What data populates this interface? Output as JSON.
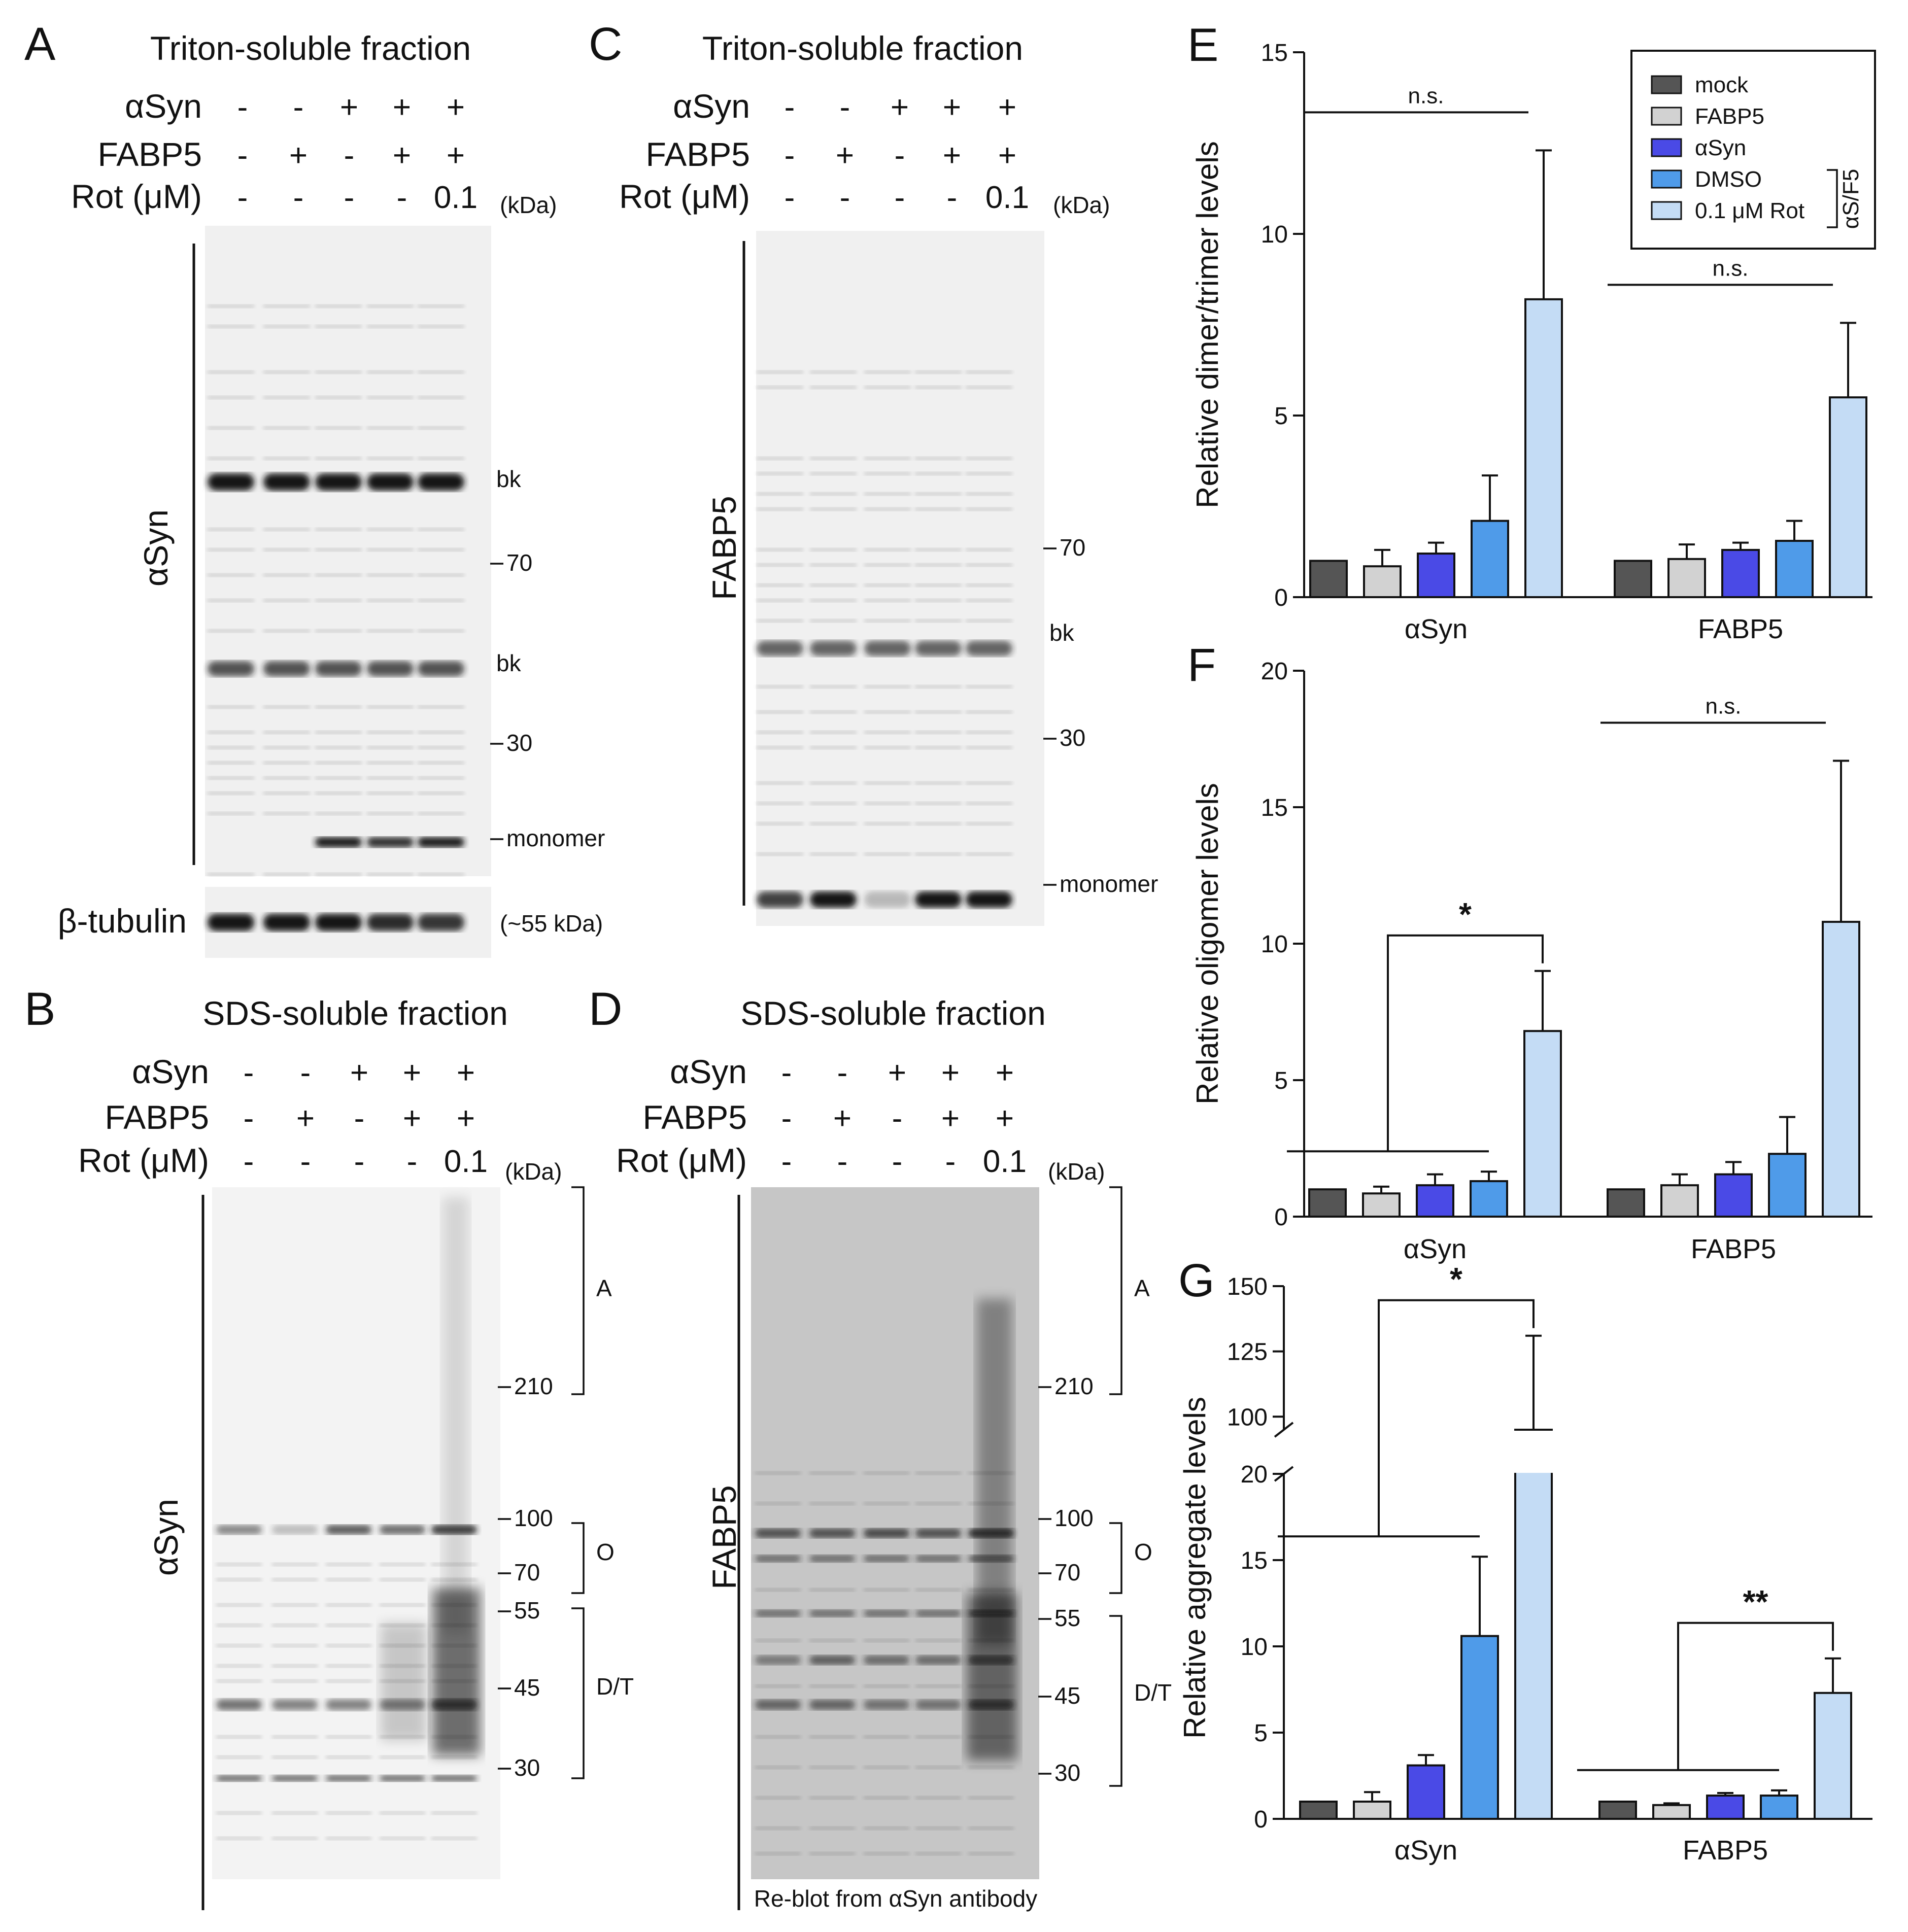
{
  "blots": {
    "A": {
      "panel": "A",
      "title": "Triton-soluble fraction",
      "rows": [
        {
          "label": "αSyn",
          "signs": [
            "-",
            "-",
            "+",
            "+",
            "+"
          ]
        },
        {
          "label": "FABP5",
          "signs": [
            "-",
            "+",
            "-",
            "+",
            "+"
          ]
        },
        {
          "label": "Rot (μM)",
          "signs": [
            "-",
            "-",
            "-",
            "-",
            "0.1"
          ]
        }
      ],
      "kda": "(kDa)",
      "antibody": "αSyn",
      "markers": [
        "bk",
        "70",
        "bk",
        "30",
        "monomer"
      ],
      "loading_label": "β-tubulin",
      "loading_note": "(~55 kDa)"
    },
    "B": {
      "panel": "B",
      "title": "SDS-soluble fraction",
      "rows": [
        {
          "label": "αSyn",
          "signs": [
            "-",
            "-",
            "+",
            "+",
            "+"
          ]
        },
        {
          "label": "FABP5",
          "signs": [
            "-",
            "+",
            "-",
            "+",
            "+"
          ]
        },
        {
          "label": "Rot (μM)",
          "signs": [
            "-",
            "-",
            "-",
            "-",
            "0.1"
          ]
        }
      ],
      "kda": "(kDa)",
      "antibody": "αSyn",
      "markers": [
        "210",
        "100",
        "70",
        "55",
        "45",
        "30"
      ],
      "brackets": [
        "A",
        "O",
        "D/T"
      ]
    },
    "C": {
      "panel": "C",
      "title": "Triton-soluble fraction",
      "rows": [
        {
          "label": "αSyn",
          "signs": [
            "-",
            "-",
            "+",
            "+",
            "+"
          ]
        },
        {
          "label": "FABP5",
          "signs": [
            "-",
            "+",
            "-",
            "+",
            "+"
          ]
        },
        {
          "label": "Rot (μM)",
          "signs": [
            "-",
            "-",
            "-",
            "-",
            "0.1"
          ]
        }
      ],
      "kda": "(kDa)",
      "antibody": "FABP5",
      "markers": [
        "70",
        "bk",
        "30",
        "monomer"
      ]
    },
    "D": {
      "panel": "D",
      "title": "SDS-soluble fraction",
      "rows": [
        {
          "label": "αSyn",
          "signs": [
            "-",
            "-",
            "+",
            "+",
            "+"
          ]
        },
        {
          "label": "FABP5",
          "signs": [
            "-",
            "+",
            "-",
            "+",
            "+"
          ]
        },
        {
          "label": "Rot (μM)",
          "signs": [
            "-",
            "-",
            "-",
            "-",
            "0.1"
          ]
        }
      ],
      "kda": "(kDa)",
      "antibody": "FABP5",
      "markers": [
        "210",
        "100",
        "70",
        "55",
        "45",
        "30"
      ],
      "brackets": [
        "A",
        "O",
        "D/T"
      ],
      "note": "Re-blot from αSyn antibody"
    }
  },
  "legend": {
    "items": [
      "mock",
      "FABP5",
      "αSyn",
      "DMSO",
      "0.1 μM Rot"
    ],
    "group_label": "αS/F5"
  },
  "colors": {
    "mock": "#555555",
    "FABP5": "#d2d2d2",
    "αSyn": "#4a4ae6",
    "DMSO": "#4f9be9",
    "0.1 μM Rot": "#c4dcf5",
    "blot_band": "#151515",
    "blot_bg_triton": "#f0f0f0",
    "blot_bg_sds_light": "#f3f3f3",
    "blot_bg_sds_dark": "#c6c6c6"
  },
  "chart_data": [
    {
      "panel": "E",
      "type": "bar",
      "ylabel": "Relative dimer/trimer levels",
      "categories": [
        "αSyn",
        "FABP5"
      ],
      "ylim": [
        0,
        15
      ],
      "yticks": [
        0,
        5,
        10,
        15
      ],
      "series": [
        {
          "name": "mock",
          "values": [
            1.0,
            1.0
          ],
          "err": [
            0,
            0
          ]
        },
        {
          "name": "FABP5",
          "values": [
            0.85,
            1.05
          ],
          "err": [
            0.45,
            0.4
          ]
        },
        {
          "name": "αSyn",
          "values": [
            1.2,
            1.3
          ],
          "err": [
            0.3,
            0.2
          ]
        },
        {
          "name": "DMSO",
          "values": [
            2.1,
            1.55
          ],
          "err": [
            1.25,
            0.55
          ]
        },
        {
          "name": "0.1 μM Rot",
          "values": [
            8.2,
            5.5
          ],
          "err": [
            4.1,
            2.05
          ]
        }
      ],
      "annotations": [
        {
          "text": "n.s.",
          "category": "αSyn"
        },
        {
          "text": "n.s.",
          "category": "FABP5"
        }
      ]
    },
    {
      "panel": "F",
      "type": "bar",
      "ylabel": "Relative oligomer levels",
      "categories": [
        "αSyn",
        "FABP5"
      ],
      "ylim": [
        0,
        20
      ],
      "yticks": [
        0,
        5,
        10,
        15,
        20
      ],
      "series": [
        {
          "name": "mock",
          "values": [
            1.0,
            1.0
          ],
          "err": [
            0,
            0
          ]
        },
        {
          "name": "FABP5",
          "values": [
            0.85,
            1.15
          ],
          "err": [
            0.25,
            0.4
          ]
        },
        {
          "name": "αSyn",
          "values": [
            1.15,
            1.55
          ],
          "err": [
            0.4,
            0.45
          ]
        },
        {
          "name": "DMSO",
          "values": [
            1.3,
            2.3
          ],
          "err": [
            0.35,
            1.35
          ]
        },
        {
          "name": "0.1 μM Rot",
          "values": [
            6.8,
            10.8
          ],
          "err": [
            2.2,
            5.9
          ]
        }
      ],
      "annotations": [
        {
          "text": "*",
          "category": "αSyn"
        },
        {
          "text": "n.s.",
          "category": "FABP5"
        }
      ]
    },
    {
      "panel": "G",
      "type": "bar",
      "ylabel": "Relative aggregate levels",
      "categories": [
        "αSyn",
        "FABP5"
      ],
      "axis_break": [
        20,
        95
      ],
      "ylim": [
        0,
        150
      ],
      "yticks": [
        0,
        5,
        10,
        15,
        20,
        100,
        125,
        150
      ],
      "series": [
        {
          "name": "mock",
          "values": [
            1.0,
            1.0
          ],
          "err": [
            0,
            0
          ]
        },
        {
          "name": "FABP5",
          "values": [
            1.0,
            0.8
          ],
          "err": [
            0.55,
            0.1
          ]
        },
        {
          "name": "αSyn",
          "values": [
            3.1,
            1.35
          ],
          "err": [
            0.6,
            0.15
          ]
        },
        {
          "name": "DMSO",
          "values": [
            10.6,
            1.35
          ],
          "err": [
            4.6,
            0.3
          ]
        },
        {
          "name": "0.1 μM Rot",
          "values": [
            95,
            7.3
          ],
          "err": [
            36,
            2.0
          ]
        }
      ],
      "annotations": [
        {
          "text": "*",
          "category": "αSyn"
        },
        {
          "text": "**",
          "category": "FABP5"
        }
      ]
    }
  ],
  "chart_panels": [
    "E",
    "F",
    "G"
  ]
}
